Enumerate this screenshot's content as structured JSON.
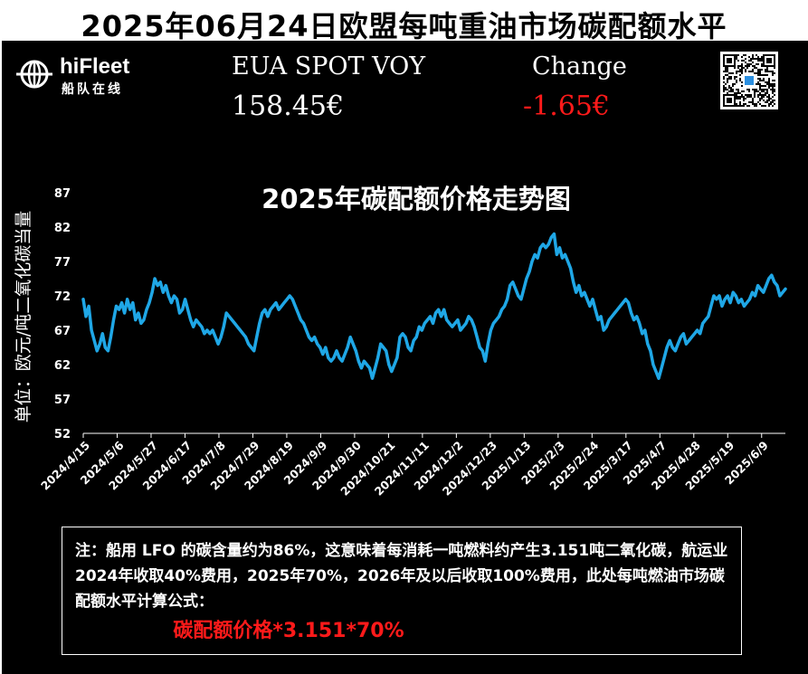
{
  "header": {
    "title": "2025年06月24日欧盟每吨重油市场碳配额水平"
  },
  "brand": {
    "name": "hiFleet",
    "subtitle": "船队在线"
  },
  "quote": {
    "spot_label": "EUA SPOT VOY",
    "spot_value": "158.45€",
    "change_label": "Change",
    "change_value": "-1.65€"
  },
  "colors": {
    "line": "#1fa7e6",
    "negative": "#ff1a1a",
    "background": "#000000",
    "text": "#ffffff"
  },
  "chart_data": {
    "type": "line",
    "title": "2025年碳配额价格走势图",
    "ylabel": "单位：欧元/吨二氧化碳当量",
    "xlabel": "",
    "ylim": [
      52,
      87
    ],
    "yticks": [
      52,
      57,
      62,
      67,
      72,
      77,
      82,
      87
    ],
    "xticks": [
      "2024/4/15",
      "2024/5/6",
      "2024/5/27",
      "2024/6/17",
      "2024/7/8",
      "2024/7/29",
      "2024/8/19",
      "2024/9/9",
      "2024/9/30",
      "2024/10/21",
      "2024/11/11",
      "2024/12/2",
      "2024/12/23",
      "2025/1/13",
      "2025/2/3",
      "2025/2/24",
      "2025/3/17",
      "2025/4/7",
      "2025/4/28",
      "2025/5/19",
      "2025/6/9"
    ],
    "grid": false,
    "series": [
      {
        "values": [
          71.5,
          69.0,
          70.5,
          67.0,
          65.5,
          64.0,
          65.0,
          66.5,
          64.5,
          64.0,
          66.0,
          68.5,
          70.5,
          70.0,
          71.0,
          69.5,
          71.5,
          70.0,
          71.0,
          68.5,
          69.5,
          68.0,
          68.5,
          70.0,
          71.0,
          72.5,
          74.5,
          73.5,
          74.0,
          72.5,
          73.5,
          72.0,
          71.0,
          72.0,
          71.5,
          69.5,
          70.0,
          71.5,
          70.0,
          68.5,
          67.5,
          68.5,
          68.0,
          67.5,
          66.5,
          67.0,
          66.5,
          67.0,
          66.0,
          65.0,
          66.0,
          67.5,
          69.5,
          69.0,
          68.5,
          68.0,
          67.5,
          67.0,
          66.5,
          66.0,
          65.0,
          64.5,
          64.0,
          66.0,
          68.0,
          69.5,
          70.0,
          69.0,
          70.0,
          70.5,
          71.0,
          70.0,
          70.5,
          71.0,
          71.5,
          72.0,
          71.5,
          70.5,
          69.5,
          68.5,
          68.0,
          67.0,
          66.0,
          65.5,
          66.0,
          65.0,
          64.5,
          63.5,
          64.5,
          63.0,
          62.5,
          63.0,
          64.0,
          63.0,
          62.5,
          63.5,
          64.5,
          66.0,
          65.0,
          64.0,
          62.5,
          61.5,
          62.5,
          62.0,
          61.5,
          60.0,
          61.5,
          63.0,
          65.0,
          64.5,
          64.0,
          62.0,
          61.0,
          62.0,
          63.0,
          66.0,
          66.5,
          66.0,
          64.5,
          64.0,
          65.5,
          66.0,
          67.5,
          67.0,
          68.0,
          68.5,
          69.0,
          68.0,
          69.5,
          70.0,
          69.0,
          70.0,
          68.5,
          68.0,
          67.5,
          68.0,
          68.5,
          67.0,
          67.5,
          68.0,
          69.0,
          68.5,
          67.5,
          66.0,
          64.5,
          64.0,
          62.5,
          65.0,
          67.0,
          68.0,
          68.5,
          69.0,
          70.0,
          70.5,
          71.5,
          73.5,
          74.0,
          73.0,
          72.0,
          71.5,
          73.0,
          74.5,
          75.5,
          77.0,
          78.0,
          77.5,
          79.0,
          79.5,
          79.0,
          79.5,
          80.5,
          81.0,
          78.0,
          79.0,
          77.5,
          78.0,
          77.0,
          76.0,
          74.0,
          72.5,
          73.5,
          72.0,
          72.5,
          71.5,
          70.5,
          71.5,
          70.0,
          68.5,
          69.0,
          67.0,
          67.5,
          68.5,
          69.0,
          69.5,
          70.0,
          70.5,
          71.0,
          71.5,
          71.0,
          69.5,
          68.5,
          69.0,
          68.0,
          66.5,
          67.0,
          65.0,
          64.0,
          62.0,
          61.0,
          60.0,
          61.5,
          63.0,
          64.5,
          65.5,
          64.5,
          64.0,
          65.0,
          66.0,
          66.5,
          65.0,
          65.5,
          66.0,
          66.5,
          67.0,
          66.5,
          68.0,
          68.5,
          69.0,
          70.5,
          72.0,
          71.5,
          72.0,
          70.5,
          71.5,
          72.0,
          71.0,
          72.5,
          72.0,
          71.0,
          71.5,
          70.5,
          71.0,
          71.5,
          72.5,
          72.0,
          73.5,
          73.0,
          72.5,
          73.5,
          74.5,
          75.0,
          74.0,
          73.5,
          72.0,
          72.5,
          73.0
        ]
      }
    ]
  },
  "note": {
    "text": "注：船用 LFO 的碳含量约为86%，这意味着每消耗一吨燃料约产生3.151吨二氧化碳，航运业2024年收取40%费用，2025年70%，2026年及以后收取100%费用，此处每吨燃油市场碳配额水平计算公式：",
    "formula": "碳配额价格*3.151*70%"
  }
}
